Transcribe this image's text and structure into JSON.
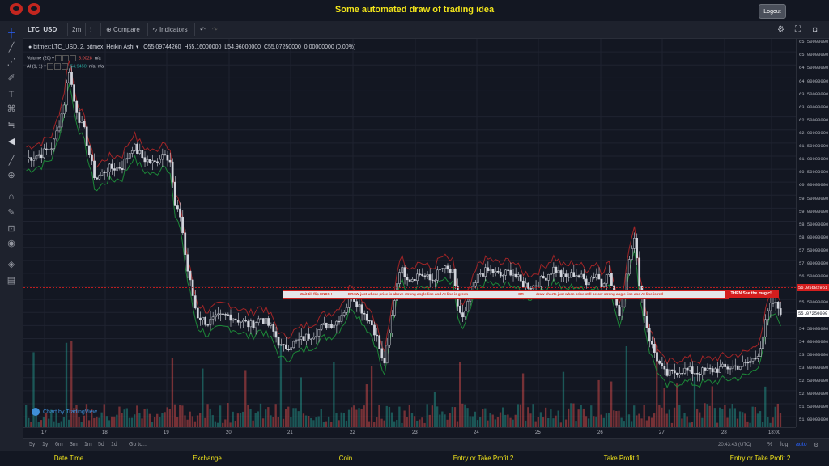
{
  "app": {
    "title": "Some automated draw of trading idea",
    "logout_label": "Logout"
  },
  "toolbar": {
    "symbol": "LTC_USD",
    "interval": "2m",
    "compare_label": "Compare",
    "indicators_label": "Indicators"
  },
  "legend": {
    "main": "bitmex:LTC_USD, 2, bitmex, Heikin Ashi",
    "open": "O55.09744260",
    "high": "H55.16000000",
    "low": "L54.96000000",
    "close": "C55.07250000",
    "change": "0.00000000 (0.00%)",
    "volume_label": "Volume (20)",
    "volume_value": "5.0028",
    "volume_na": "n/a",
    "ai_label": "AI (1, 1)",
    "ai_value": "54.9450",
    "ai_na1": "n/a",
    "ai_na2": "n/a"
  },
  "banner": {
    "part1": "Wait till flip ENDS  !",
    "part2": "DRAW just when:  price is above strong angle line and AI line is green",
    "part3": "OR",
    "part4": "draw shorts just when price still below strong angle line and AI line is red",
    "part5": "THEN See the magic!!"
  },
  "price_axis": {
    "labels": [
      "65.50000000",
      "65.00000000",
      "64.50000000",
      "64.00000000",
      "63.50000000",
      "63.00000000",
      "62.50000000",
      "62.00000000",
      "61.50000000",
      "61.00000000",
      "60.50000000",
      "60.00000000",
      "59.50000000",
      "59.00000000",
      "58.50000000",
      "58.00000000",
      "57.50000000",
      "57.00000000",
      "56.50000000",
      "56.00000000",
      "55.50000000",
      "55.00000000",
      "54.50000000",
      "54.00000000",
      "53.50000000",
      "53.00000000",
      "52.50000000",
      "52.00000000",
      "51.50000000",
      "51.00000000"
    ],
    "level_tag": "56.05682951",
    "price_tag": "55.07250000"
  },
  "time_axis": {
    "labels": [
      "17",
      "18",
      "19",
      "20",
      "21",
      "22",
      "23",
      "24",
      "25",
      "26",
      "27",
      "28",
      "18:00"
    ]
  },
  "range_bar": {
    "ranges": [
      "5y",
      "1y",
      "6m",
      "3m",
      "1m",
      "5d",
      "1d"
    ],
    "goto_label": "Go to...",
    "clock": "20:43:43 (UTC)",
    "percent_label": "%",
    "log_label": "log",
    "auto_label": "auto"
  },
  "branding": {
    "tv_label": "Chart by TradingView"
  },
  "bottom_nav": [
    "Date Time",
    "Exchange",
    "Coin",
    "Entry or Take Profit 2",
    "Take Profit 1",
    "Entry or Take Profit 2"
  ],
  "colors": {
    "title": "#f2e51b",
    "up": "#26a69a",
    "down": "#ef5350",
    "ai_up": "#1e9b3c",
    "ai_down": "#c62828"
  },
  "chart_data": {
    "type": "candlestick",
    "price_path": [
      [
        0,
        61.0
      ],
      [
        3,
        61.2
      ],
      [
        5,
        61.5
      ],
      [
        7,
        63.0
      ],
      [
        8,
        64.5
      ],
      [
        9,
        63.2
      ],
      [
        10,
        62.5
      ],
      [
        11,
        62.0
      ],
      [
        12,
        61.0
      ],
      [
        13,
        60.2
      ],
      [
        15,
        60.6
      ],
      [
        18,
        60.7
      ],
      [
        20,
        61.5
      ],
      [
        22,
        61.0
      ],
      [
        24,
        60.8
      ],
      [
        26,
        61.3
      ],
      [
        27,
        60.9
      ],
      [
        28,
        59.0
      ],
      [
        29,
        58.8
      ],
      [
        30,
        57.0
      ],
      [
        31,
        56.0
      ],
      [
        32,
        55.0
      ],
      [
        34,
        54.7
      ],
      [
        36,
        54.9
      ],
      [
        38,
        55.0
      ],
      [
        40,
        54.8
      ],
      [
        42,
        54.6
      ],
      [
        44,
        54.9
      ],
      [
        46,
        54.5
      ],
      [
        48,
        53.7
      ],
      [
        50,
        53.9
      ],
      [
        52,
        54.1
      ],
      [
        54,
        54.3
      ],
      [
        56,
        54.6
      ],
      [
        58,
        54.7
      ],
      [
        60,
        55.3
      ],
      [
        61,
        55.8
      ],
      [
        63,
        55.2
      ],
      [
        65,
        54.6
      ],
      [
        66,
        54.0
      ],
      [
        67,
        53.0
      ],
      [
        68,
        54.0
      ],
      [
        69,
        55.5
      ],
      [
        70,
        56.8
      ],
      [
        72,
        56.4
      ],
      [
        74,
        56.6
      ],
      [
        76,
        56.3
      ],
      [
        78,
        56.8
      ],
      [
        80,
        56.6
      ],
      [
        81,
        55.3
      ],
      [
        82,
        54.8
      ],
      [
        83,
        55.5
      ],
      [
        85,
        56.6
      ],
      [
        87,
        56.7
      ],
      [
        89,
        56.5
      ],
      [
        91,
        56.7
      ],
      [
        93,
        56.2
      ],
      [
        95,
        56.1
      ],
      [
        97,
        56.4
      ],
      [
        99,
        56.8
      ],
      [
        101,
        56.4
      ],
      [
        103,
        56.6
      ],
      [
        105,
        56.3
      ],
      [
        107,
        56.6
      ],
      [
        108,
        56.1
      ],
      [
        109,
        56.8
      ],
      [
        110,
        56.0
      ],
      [
        111,
        55.0
      ],
      [
        112,
        55.5
      ],
      [
        113,
        57.2
      ],
      [
        114,
        58.0
      ],
      [
        115,
        56.3
      ],
      [
        116,
        55.0
      ],
      [
        117,
        54.0
      ],
      [
        118,
        53.5
      ],
      [
        119,
        53.0
      ],
      [
        120,
        52.7
      ],
      [
        123,
        52.9
      ],
      [
        126,
        52.8
      ],
      [
        129,
        52.9
      ],
      [
        132,
        53.0
      ],
      [
        135,
        53.1
      ],
      [
        137,
        53.4
      ],
      [
        138,
        54.0
      ],
      [
        139,
        55.0
      ],
      [
        140,
        55.5
      ],
      [
        142,
        55.07
      ]
    ],
    "ylim": [
      50.7,
      65.6
    ],
    "ai_line_color_phases": [
      "green",
      "red",
      "green",
      "red",
      "green",
      "red",
      "green",
      "red",
      "green"
    ]
  }
}
